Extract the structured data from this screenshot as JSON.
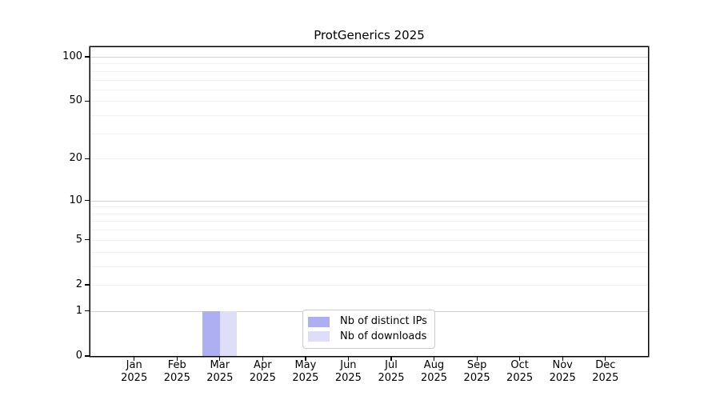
{
  "chart_data": {
    "type": "bar",
    "title": "ProtGenerics 2025",
    "categories": [
      "Jan",
      "Feb",
      "Mar",
      "Apr",
      "May",
      "Jun",
      "Jul",
      "Aug",
      "Sep",
      "Oct",
      "Nov",
      "Dec"
    ],
    "year": "2025",
    "series": [
      {
        "name": "Nb of distinct IPs",
        "color": "#aeaef2",
        "values": [
          0,
          0,
          1,
          0,
          0,
          0,
          0,
          0,
          0,
          0,
          0,
          0
        ]
      },
      {
        "name": "Nb of downloads",
        "color": "#dedef8",
        "values": [
          0,
          0,
          1,
          0,
          0,
          0,
          0,
          0,
          0,
          0,
          0,
          0
        ]
      }
    ],
    "xlabel": "",
    "ylabel": "",
    "y_scale": "log1p",
    "ylim": [
      0,
      116
    ],
    "y_ticks": [
      0,
      1,
      2,
      5,
      10,
      20,
      50,
      100
    ],
    "grid": {
      "on": true,
      "minor_values": [
        2,
        3,
        4,
        5,
        6,
        7,
        8,
        9,
        20,
        30,
        40,
        50,
        60,
        70,
        80,
        90
      ],
      "major_values": [
        1,
        10,
        100
      ]
    },
    "legend": {
      "position": "inside-bottom-center"
    }
  },
  "colors": {
    "background": "#ffffff",
    "spine": "#000000",
    "text": "#000000",
    "grid_minor": "#f1f1f1",
    "grid_major": "#d2d2d2",
    "legend_border": "#cccccc",
    "bar_distinct_ips": "#aeaef2",
    "bar_downloads": "#dedef8"
  }
}
